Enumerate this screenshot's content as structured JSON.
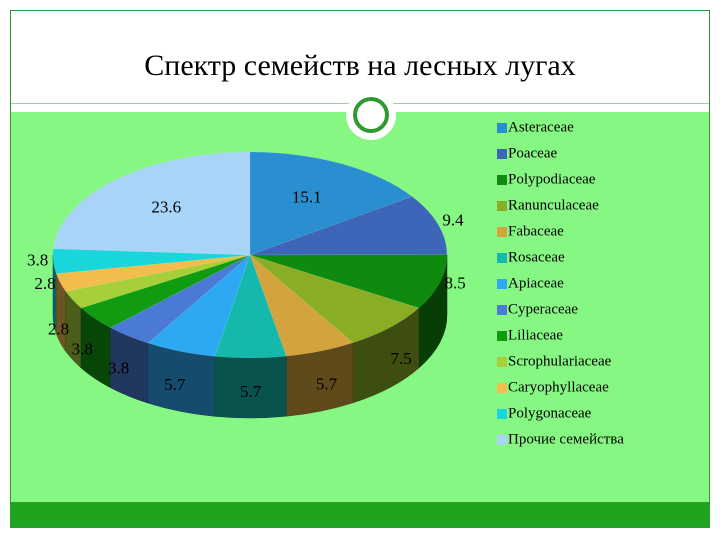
{
  "title": "Спектр семейств на лесных лугах",
  "colors": {
    "background": "#86f782",
    "footer": "#1fa41f",
    "frame": "#2f9b2f"
  },
  "chart_data": {
    "type": "pie",
    "title": "Спектр семейств на лесных лугах",
    "legend_position": "right",
    "three_d": true,
    "slices": [
      {
        "label": "Asteraceae",
        "value": 15.1,
        "color": "#2a8fd0"
      },
      {
        "label": "Poaceae",
        "value": 9.4,
        "color": "#3d66b8"
      },
      {
        "label": "Polypodiaceae",
        "value": 8.5,
        "color": "#0e8a0e"
      },
      {
        "label": "Ranunculaceae",
        "value": 7.5,
        "color": "#8aad26"
      },
      {
        "label": "Fabaceae",
        "value": 5.7,
        "color": "#d3a43d"
      },
      {
        "label": "Rosaceae",
        "value": 5.7,
        "color": "#14b8ac"
      },
      {
        "label": "Apiaceae",
        "value": 5.7,
        "color": "#2ea8f2"
      },
      {
        "label": "Cyperaceae",
        "value": 3.8,
        "color": "#4a7ad6"
      },
      {
        "label": "Liliaceae",
        "value": 3.8,
        "color": "#119b11"
      },
      {
        "label": "Scrophulariaceae",
        "value": 2.8,
        "color": "#a6cf3a"
      },
      {
        "label": "Caryophyllaceae",
        "value": 2.8,
        "color": "#f3bd4d"
      },
      {
        "label": "Polygonaceae",
        "value": 3.8,
        "color": "#19d5dc"
      },
      {
        "label": "Прочие семейства",
        "value": 23.6,
        "color": "#a8d4f8"
      }
    ]
  }
}
